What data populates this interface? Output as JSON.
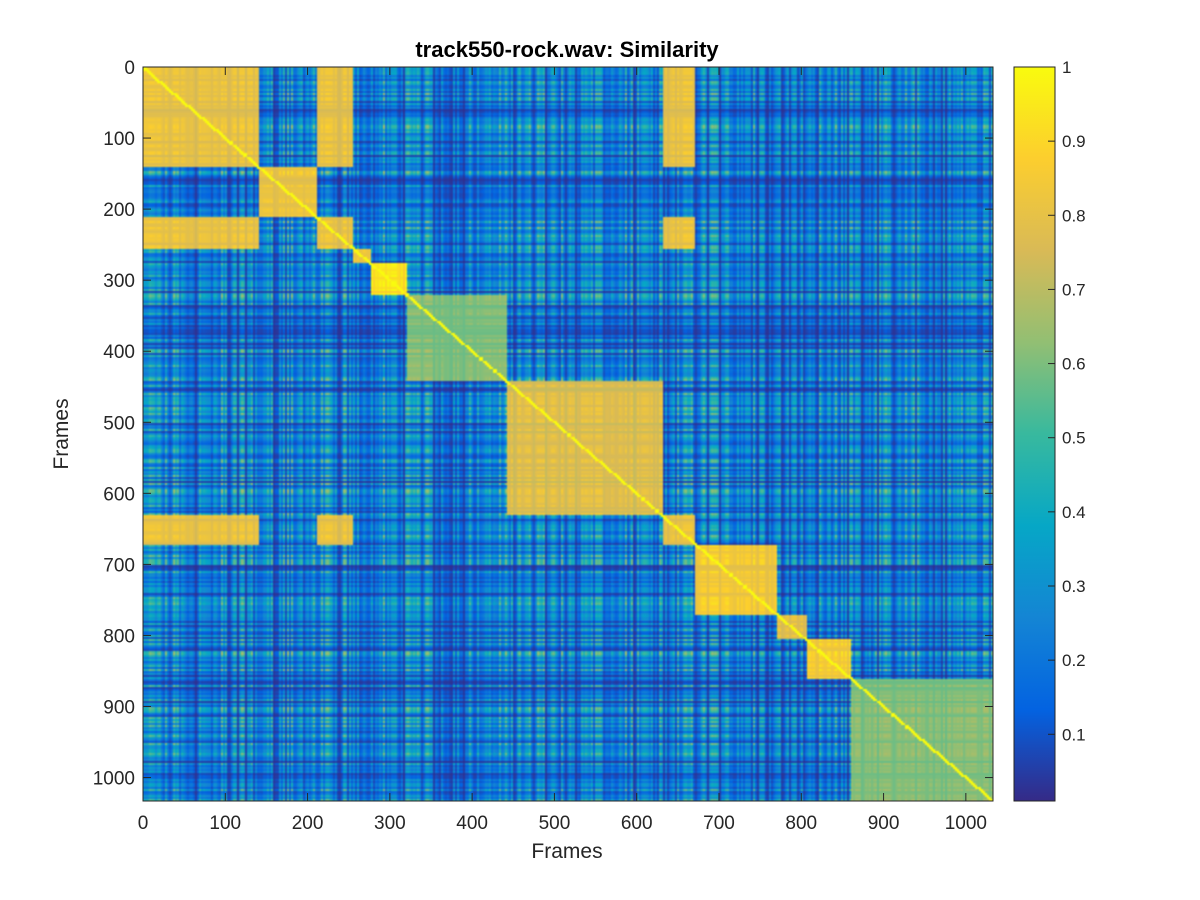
{
  "chart_data": {
    "type": "heatmap",
    "title": "track550-rock.wav: Similarity",
    "xlabel": "Frames",
    "ylabel": "Frames",
    "xlim": [
      0,
      1033
    ],
    "ylim": [
      0,
      1033
    ],
    "y_direction": "reversed",
    "x_ticks": [
      "0",
      "100",
      "200",
      "300",
      "400",
      "500",
      "600",
      "700",
      "800",
      "900",
      "1000"
    ],
    "y_ticks": [
      "0",
      "100",
      "200",
      "300",
      "400",
      "500",
      "600",
      "700",
      "800",
      "900",
      "1000"
    ],
    "colorbar": {
      "range": [
        0.01,
        1
      ],
      "ticks": [
        "0.1",
        "0.2",
        "0.3",
        "0.4",
        "0.5",
        "0.6",
        "0.7",
        "0.8",
        "0.9",
        "1"
      ],
      "colormap": "parula",
      "colors": [
        "#352a87",
        "#0363e1",
        "#1485d4",
        "#06a7c6",
        "#38b99e",
        "#92bf73",
        "#d9ba56",
        "#fcce2e",
        "#f9fb0e"
      ]
    },
    "blocks": [
      {
        "frames": [
          0,
          140
        ],
        "similarity": 0.85
      },
      {
        "frames": [
          140,
          210
        ],
        "similarity": 0.88
      },
      {
        "frames": [
          255,
          275
        ],
        "similarity": 0.9
      },
      {
        "frames": [
          275,
          320
        ],
        "similarity": 1.0
      },
      {
        "frames": [
          320,
          440
        ],
        "similarity": 0.65
      },
      {
        "frames": [
          440,
          630
        ],
        "similarity": 0.82
      },
      {
        "frames": [
          670,
          770
        ],
        "similarity": 0.9
      },
      {
        "frames": [
          770,
          805
        ],
        "similarity": 0.85
      },
      {
        "frames": [
          805,
          860
        ],
        "similarity": 0.92
      },
      {
        "frames": [
          860,
          1033
        ],
        "similarity": 0.65
      }
    ],
    "diagonal_similarity": 1.0
  }
}
